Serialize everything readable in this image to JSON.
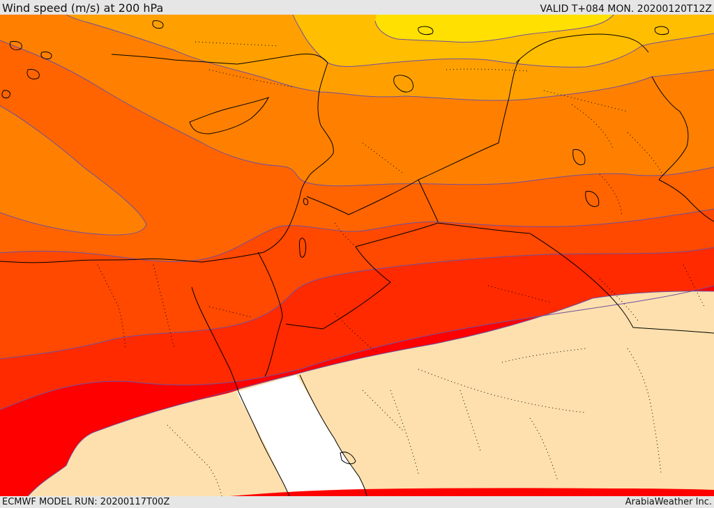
{
  "header": {
    "title": "Wind speed (m/s) at 200 hPa",
    "valid_time": "VALID T+084 MON. 20200120T12Z"
  },
  "footer": {
    "model_run": "ECMWF MODEL RUN: 20200117T00Z",
    "credit": "ArabiaWeather Inc."
  },
  "map": {
    "variable": "wind speed",
    "units": "m/s",
    "pressure_level": "200 hPa",
    "fill_colors": {
      "band_1_strongest": "#ff0000",
      "band_2": "#ff2a00",
      "band_3": "#ff4800",
      "band_4": "#ff6400",
      "band_5": "#ff8000",
      "band_6": "#ffa000",
      "band_7": "#ffbe00",
      "band_8_weakest_shown": "#ffe000",
      "below_threshold_land": "#fde0ad",
      "below_threshold_sea": "#ffffff"
    },
    "contour_line_color": "#6f4fa0",
    "coastline_color": "#000000"
  }
}
